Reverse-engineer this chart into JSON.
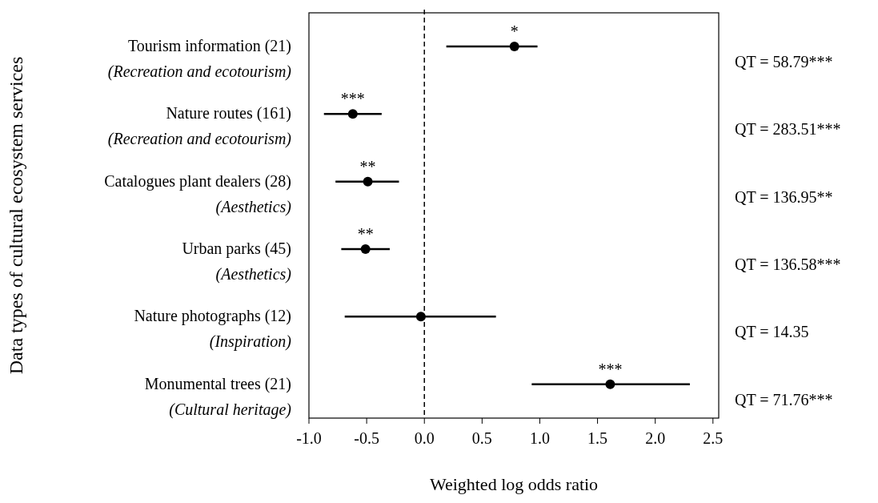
{
  "chart_data": {
    "type": "scatter",
    "orientation": "horizontal",
    "xlabel": "Weighted log odds ratio",
    "ylabel": "Data types of cultural ecosystem services",
    "categories": [
      "Tourism information (21)\n(Recreation and ecotourism)",
      "Nature routes (161)\n(Recreation and ecotourism)",
      "Catalogues plant dealers (28)\n(Aesthetics)",
      "Urban parks (45)\n(Aesthetics)",
      "Nature photographs (12)\n(Inspiration)",
      "Monumental trees (21)\n(Cultural heritage)"
    ],
    "series": [
      {
        "color": "#000000",
        "values": [
          0.78,
          -0.62,
          -0.49,
          -0.51,
          -0.03,
          1.61
        ],
        "value_labels": [
          "*",
          "***",
          "**",
          "**",
          null,
          "***"
        ],
        "errors": [
          [
            0.19,
            0.98
          ],
          [
            -0.87,
            -0.37
          ],
          [
            -0.77,
            -0.22
          ],
          [
            -0.72,
            -0.3
          ],
          [
            -0.69,
            0.62
          ],
          [
            0.93,
            2.3
          ]
        ]
      }
    ],
    "marker": "circle",
    "xlim": [
      -1,
      2.55
    ],
    "xticks": [
      {
        "value": -1,
        "label": "-1.0"
      },
      {
        "value": -0.5,
        "label": "-0.5"
      },
      {
        "value": 0,
        "label": "0.0"
      },
      {
        "value": 0.5,
        "label": "0.5"
      },
      {
        "value": 1,
        "label": "1.0"
      },
      {
        "value": 1.5,
        "label": "1.5"
      },
      {
        "value": 2,
        "label": "2.0"
      },
      {
        "value": 2.5,
        "label": "2.5"
      }
    ],
    "ref_lines": [
      {
        "axis": "x",
        "value": 0,
        "line_style": "dashed",
        "color": "#000000"
      }
    ],
    "annotations": [
      "QT = 58.79***",
      "QT = 283.51***",
      "QT = 136.95**",
      "QT = 136.58***",
      "QT = 14.35",
      "QT = 71.76***"
    ]
  }
}
